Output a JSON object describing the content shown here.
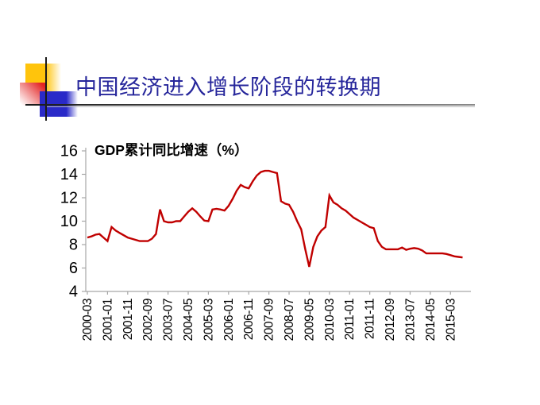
{
  "slide": {
    "title": "中国经济进入增长阶段的转换期",
    "title_color": "#26269b",
    "background": "#ffffff",
    "decoration": {
      "yellow_square": "#ffc40c",
      "red_square": "#e32222",
      "blue_square": "#2a2ac8",
      "line": "#1a1a1a"
    }
  },
  "chart_data": {
    "type": "line",
    "title": "GDP累计同比增速（%）",
    "xlabel": "",
    "ylabel": "",
    "ylim": [
      4,
      16
    ],
    "y_ticks": [
      16,
      14,
      12,
      10,
      8,
      6,
      4
    ],
    "grid": false,
    "legend_position": "none",
    "axis_color": "#a6a6a6",
    "text_color": "#000000",
    "x_label_every": 5,
    "x_tick_labels": [
      "2000-03",
      "2001-01",
      "2001-11",
      "2002-09",
      "2003-07",
      "2004-05",
      "2005-03",
      "2006-01",
      "2006-11",
      "2007-09",
      "2008-07",
      "2009-05",
      "2010-03",
      "2011-01",
      "2011-11",
      "2012-09",
      "2013-07",
      "2014-05",
      "2015-03"
    ],
    "series": [
      {
        "name": "GDP累计同比增速（%）",
        "color": "#c00000",
        "x": [
          "2000-03",
          "2000-05",
          "2000-07",
          "2000-09",
          "2000-11",
          "2001-01",
          "2001-03",
          "2001-05",
          "2001-07",
          "2001-09",
          "2001-11",
          "2002-01",
          "2002-03",
          "2002-05",
          "2002-07",
          "2002-09",
          "2002-11",
          "2003-01",
          "2003-03",
          "2003-05",
          "2003-07",
          "2003-09",
          "2003-11",
          "2004-01",
          "2004-03",
          "2004-05",
          "2004-07",
          "2004-09",
          "2004-11",
          "2005-01",
          "2005-03",
          "2005-05",
          "2005-07",
          "2005-09",
          "2005-11",
          "2006-01",
          "2006-03",
          "2006-05",
          "2006-07",
          "2006-09",
          "2006-11",
          "2007-01",
          "2007-03",
          "2007-05",
          "2007-07",
          "2007-09",
          "2007-11",
          "2008-01",
          "2008-03",
          "2008-05",
          "2008-07",
          "2008-09",
          "2008-11",
          "2009-01",
          "2009-03",
          "2009-05",
          "2009-07",
          "2009-09",
          "2009-11",
          "2010-01",
          "2010-03",
          "2010-05",
          "2010-07",
          "2010-09",
          "2010-11",
          "2011-01",
          "2011-03",
          "2011-05",
          "2011-07",
          "2011-09",
          "2011-11",
          "2012-01",
          "2012-03",
          "2012-05",
          "2012-07",
          "2012-09",
          "2012-11",
          "2013-01",
          "2013-03",
          "2013-05",
          "2013-07",
          "2013-09",
          "2013-11",
          "2014-01",
          "2014-03",
          "2014-05",
          "2014-07",
          "2014-09",
          "2014-11",
          "2015-01",
          "2015-03",
          "2015-05",
          "2015-07",
          "2015-09"
        ],
        "values": [
          8.6,
          8.7,
          8.85,
          8.9,
          8.6,
          8.3,
          9.5,
          9.2,
          9.0,
          8.8,
          8.6,
          8.5,
          8.4,
          8.3,
          8.3,
          8.3,
          8.5,
          8.9,
          11.0,
          10.0,
          9.9,
          9.9,
          10.0,
          10.0,
          10.4,
          10.8,
          11.1,
          10.8,
          10.4,
          10.05,
          10.0,
          11.0,
          11.05,
          11.0,
          10.9,
          11.3,
          11.9,
          12.6,
          13.1,
          12.9,
          12.8,
          13.4,
          13.9,
          14.2,
          14.3,
          14.3,
          14.2,
          14.1,
          11.7,
          11.5,
          11.4,
          10.8,
          10.0,
          9.3,
          7.6,
          6.1,
          7.8,
          8.7,
          9.2,
          9.5,
          12.2,
          11.6,
          11.4,
          11.1,
          10.9,
          10.6,
          10.3,
          10.1,
          9.9,
          9.7,
          9.5,
          9.4,
          8.3,
          7.8,
          7.6,
          7.6,
          7.6,
          7.6,
          7.75,
          7.55,
          7.65,
          7.7,
          7.65,
          7.5,
          7.25,
          7.25,
          7.25,
          7.25,
          7.25,
          7.2,
          7.1,
          7.0,
          6.95,
          6.9
        ]
      }
    ]
  }
}
